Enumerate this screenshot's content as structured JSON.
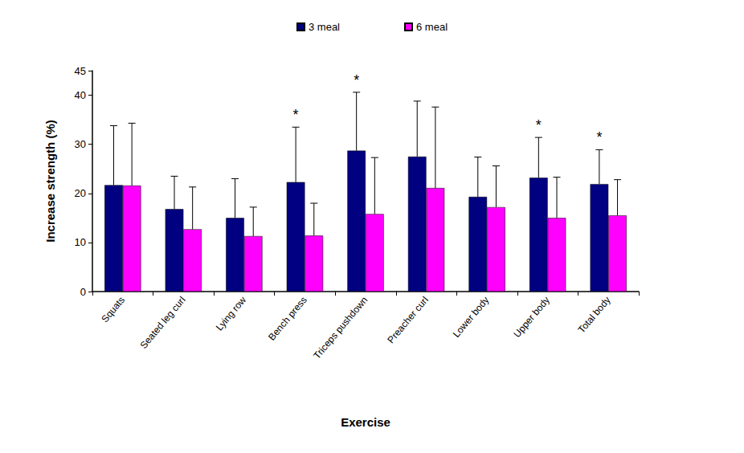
{
  "chart_data": {
    "type": "bar",
    "x_label": "Exercise",
    "y_label": "Increase strength (%)",
    "categories": [
      "Squats",
      "Seated leg curl",
      "Lying row",
      "Bench press",
      "Triceps pushdown",
      "Preacher curl",
      "Lower body",
      "Upper body",
      "Total body"
    ],
    "series": [
      {
        "name": "3 meal",
        "color": "#000080",
        "values": [
          21.7,
          16.8,
          15.0,
          22.3,
          28.7,
          27.5,
          19.3,
          23.2,
          21.9
        ],
        "errors": [
          12.1,
          6.7,
          8.0,
          11.2,
          11.9,
          11.3,
          8.1,
          8.2,
          7.0
        ]
      },
      {
        "name": "6 meal",
        "color": "#ff00ff",
        "values": [
          21.6,
          12.7,
          11.3,
          11.4,
          15.8,
          21.1,
          17.2,
          15.0,
          15.5
        ],
        "errors": [
          12.7,
          8.6,
          5.9,
          6.6,
          11.5,
          16.5,
          8.4,
          8.3,
          7.3
        ]
      }
    ],
    "annotations": [
      {
        "text": "*",
        "category": "Bench press"
      },
      {
        "text": "*",
        "category": "Triceps pushdown"
      },
      {
        "text": "*",
        "category": "Upper body"
      },
      {
        "text": "*",
        "category": "Total body"
      }
    ],
    "ylim": [
      0,
      45
    ],
    "yticks": [
      0,
      10,
      20,
      30,
      40
    ],
    "legend": "top",
    "grid": false
  }
}
